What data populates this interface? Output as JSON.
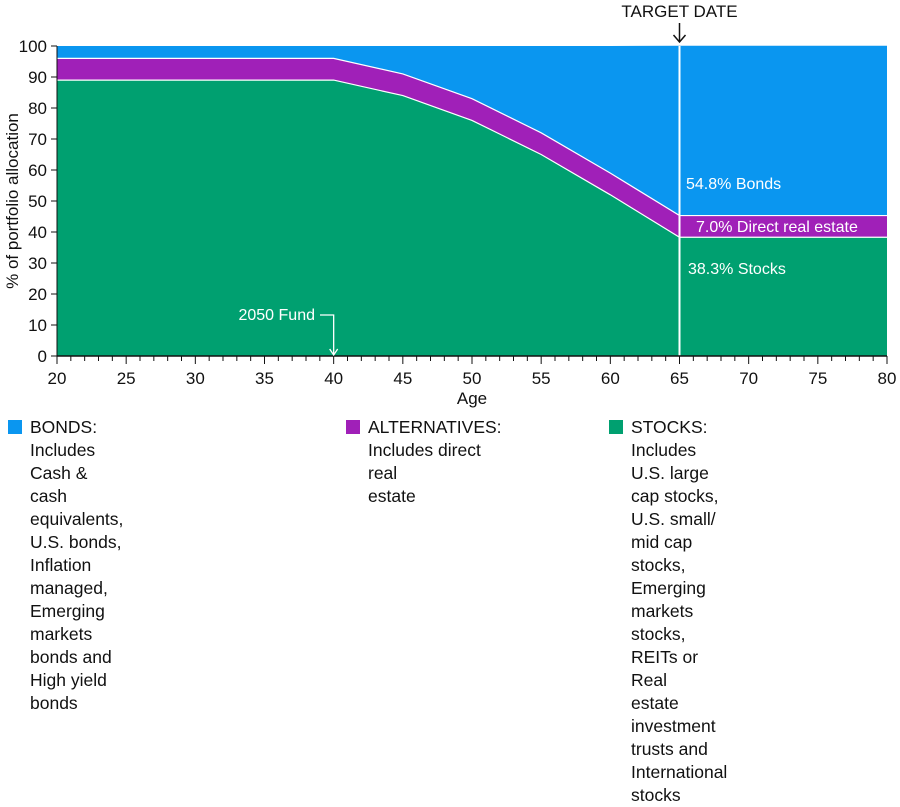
{
  "chart_data": {
    "type": "area",
    "xlabel": "Age",
    "ylabel": "% of portfolio allocation",
    "xlim": [
      20,
      80
    ],
    "ylim": [
      0,
      100
    ],
    "xticks": [
      20,
      25,
      30,
      35,
      40,
      45,
      50,
      55,
      60,
      65,
      70,
      75,
      80
    ],
    "yticks": [
      0,
      10,
      20,
      30,
      40,
      50,
      60,
      70,
      80,
      90,
      100
    ],
    "stack_order": [
      "STOCKS",
      "ALTERNATIVES",
      "BONDS"
    ],
    "x": [
      20,
      40,
      45,
      50,
      55,
      60,
      65,
      80
    ],
    "series": [
      {
        "name": "STOCKS",
        "color": "#00a070",
        "values": [
          89,
          89,
          84,
          76,
          65,
          52,
          38.3,
          38.3
        ]
      },
      {
        "name": "ALTERNATIVES",
        "color": "#a020b8",
        "values": [
          7,
          7,
          7,
          7,
          7,
          7,
          7.0,
          7.0
        ]
      },
      {
        "name": "BONDS",
        "color": "#0a96f0",
        "values": [
          4,
          4,
          9,
          17,
          28,
          41,
          54.8,
          54.8
        ]
      }
    ],
    "annotations": {
      "target_date": {
        "label": "TARGET DATE",
        "x": 65
      },
      "fund_marker": {
        "label": "2050 Fund",
        "x": 40
      },
      "bonds_label": "54.8% Bonds",
      "alternatives_label": "7.0% Direct real estate",
      "stocks_label": "38.3% Stocks"
    }
  },
  "legend": [
    {
      "key": "BONDS:",
      "text": "Includes Cash & cash equivalents, U.S. bonds, Inflation managed, Emerging markets bonds and High yield bonds",
      "color": "#0a96f0",
      "lines": [
        "BONDS: Includes Cash & cash",
        "equivalents, U.S. bonds, Inflation",
        "managed, Emerging markets",
        "bonds and High yield bonds"
      ]
    },
    {
      "key": "ALTERNATIVES:",
      "text": "Includes direct real estate",
      "color": "#a020b8",
      "lines": [
        "ALTERNATIVES:",
        "Includes direct real",
        "estate"
      ]
    },
    {
      "key": "STOCKS:",
      "text": "Includes U.S. large cap stocks, U.S. small/ mid cap stocks, Emerging markets stocks, REITs or Real estate investment trusts and International stocks",
      "color": "#00a070",
      "lines": [
        "STOCKS: Includes U.S. large",
        "cap stocks, U.S. small/",
        "mid cap stocks, Emerging",
        "markets stocks, REITs or Real",
        "estate investment trusts and",
        "International stocks"
      ]
    }
  ]
}
